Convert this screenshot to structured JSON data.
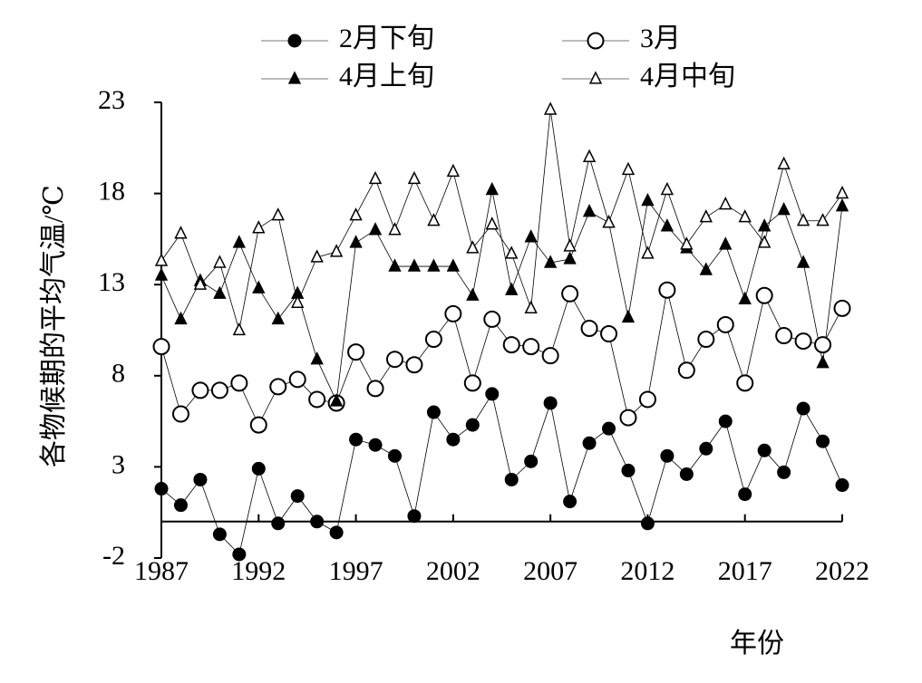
{
  "chart_data": {
    "type": "line",
    "y_label": "各物候期的平均气温/℃",
    "x_label": "年份",
    "x": [
      1987,
      1988,
      1989,
      1990,
      1991,
      1992,
      1993,
      1994,
      1995,
      1996,
      1997,
      1998,
      1999,
      2000,
      2001,
      2002,
      2003,
      2004,
      2005,
      2006,
      2007,
      2008,
      2009,
      2010,
      2011,
      2012,
      2013,
      2014,
      2015,
      2016,
      2017,
      2018,
      2019,
      2020,
      2021,
      2022
    ],
    "xlim": [
      1987,
      2022
    ],
    "xticks": [
      1987,
      1992,
      1997,
      2002,
      2007,
      2012,
      2017,
      2022
    ],
    "ylim": [
      -2,
      23
    ],
    "yticks": [
      -2,
      3,
      8,
      13,
      18,
      23
    ],
    "grid": false,
    "series": [
      {
        "name": "2月下旬",
        "color": "#000000",
        "marker": "circle",
        "filled": true,
        "values": [
          1.8,
          0.9,
          2.3,
          -0.7,
          -1.8,
          2.9,
          -0.1,
          1.4,
          0,
          -0.6,
          4.5,
          4.2,
          3.6,
          0.3,
          6.0,
          4.5,
          5.3,
          7.0,
          2.3,
          3.3,
          6.5,
          1.1,
          4.3,
          5.1,
          2.8,
          -0.1,
          3.6,
          2.6,
          4.0,
          5.5,
          1.5,
          3.9,
          2.7,
          6.2,
          4.4,
          2.0
        ]
      },
      {
        "name": "3月",
        "color": "#000000",
        "marker": "circle",
        "filled": false,
        "values": [
          9.6,
          5.9,
          7.2,
          7.2,
          7.6,
          5.3,
          7.4,
          7.8,
          6.7,
          6.5,
          9.3,
          7.3,
          8.9,
          8.6,
          10.0,
          11.4,
          7.6,
          11.1,
          9.7,
          9.6,
          9.1,
          12.5,
          10.6,
          10.3,
          5.7,
          6.7,
          12.7,
          8.3,
          10.0,
          10.8,
          7.6,
          12.4,
          10.2,
          9.9,
          9.7,
          11.7
        ]
      },
      {
        "name": "4月上旬",
        "color": "#000000",
        "marker": "triangle",
        "filled": true,
        "values": [
          13.5,
          11.1,
          13.2,
          12.5,
          15.3,
          12.8,
          11.1,
          12.5,
          8.9,
          6.6,
          15.3,
          16.0,
          14.0,
          14.0,
          14.0,
          14.0,
          12.4,
          18.2,
          12.7,
          15.6,
          14.2,
          14.4,
          17.0,
          16.4,
          11.2,
          17.6,
          16.2,
          15.0,
          13.8,
          15.2,
          12.2,
          16.2,
          17.1,
          14.2,
          8.7,
          17.3
        ]
      },
      {
        "name": "4月中旬",
        "color": "#000000",
        "marker": "triangle",
        "filled": false,
        "values": [
          14.3,
          15.8,
          13.0,
          14.2,
          10.5,
          16.1,
          16.8,
          12.0,
          14.5,
          14.8,
          16.8,
          18.8,
          16.0,
          18.8,
          16.5,
          19.2,
          15.0,
          16.3,
          14.7,
          11.7,
          22.6,
          15.1,
          20.0,
          16.4,
          19.3,
          14.7,
          18.2,
          15.2,
          16.7,
          17.4,
          16.7,
          15.3,
          19.6,
          16.5,
          16.5,
          18.0
        ]
      }
    ]
  }
}
